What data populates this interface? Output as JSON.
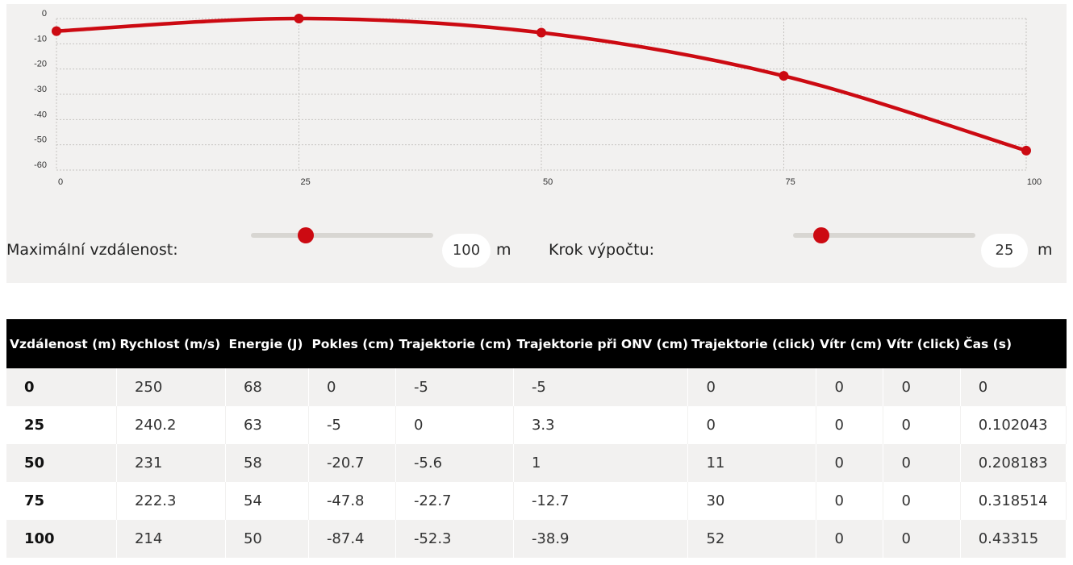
{
  "chart_data": {
    "type": "line",
    "x": [
      0,
      25,
      50,
      75,
      100
    ],
    "y": [
      -5,
      0,
      -5.6,
      -22.7,
      -52.3
    ],
    "xticks": [
      "0",
      "25",
      "50",
      "75",
      "100"
    ],
    "yticks": [
      "0",
      "-10",
      "-20",
      "-30",
      "-40",
      "-50",
      "-60"
    ],
    "xlim": [
      0,
      100
    ],
    "ylim": [
      -60,
      0
    ],
    "grid": true,
    "colors": {
      "line": "#cc0a12",
      "grid": "#c6c4c1"
    }
  },
  "controls": {
    "max_distance_label": "Maximální vzdálenost:",
    "max_distance_value": "100",
    "max_distance_unit": "m",
    "max_distance_slider_fraction": 0.28,
    "step_label": "Krok výpočtu:",
    "step_value": "25",
    "step_unit": "m",
    "step_slider_fraction": 0.12
  },
  "table": {
    "headers": [
      "Vzdálenost (m)",
      "Rychlost (m/s)",
      "Energie (J)",
      "Pokles (cm)",
      "Trajektorie (cm)",
      "Trajektorie při ONV (cm)",
      "Trajektorie (click)",
      "Vítr (cm)",
      "Vítr (click)",
      "Čas (s)"
    ],
    "rows": [
      [
        "0",
        "250",
        "68",
        "0",
        "-5",
        "-5",
        "0",
        "0",
        "0",
        "0"
      ],
      [
        "25",
        "240.2",
        "63",
        "-5",
        "0",
        "3.3",
        "0",
        "0",
        "0",
        "0.102043"
      ],
      [
        "50",
        "231",
        "58",
        "-20.7",
        "-5.6",
        "1",
        "11",
        "0",
        "0",
        "0.208183"
      ],
      [
        "75",
        "222.3",
        "54",
        "-47.8",
        "-22.7",
        "-12.7",
        "30",
        "0",
        "0",
        "0.318514"
      ],
      [
        "100",
        "214",
        "50",
        "-87.4",
        "-52.3",
        "-38.9",
        "52",
        "0",
        "0",
        "0.43315"
      ]
    ]
  }
}
